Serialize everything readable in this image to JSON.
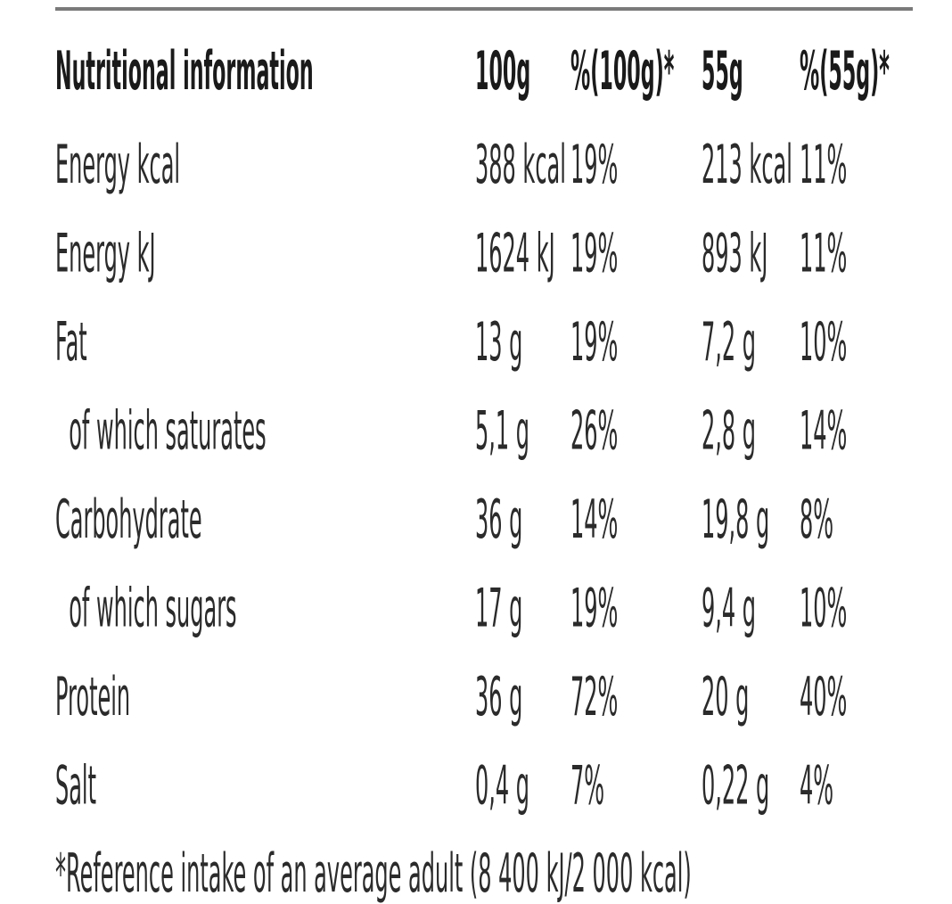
{
  "table": {
    "header": [
      "Nutritional information",
      "100g",
      "%(100g)*",
      "55g",
      "%(55g)*"
    ],
    "rows": [
      [
        "Energy kcal",
        "388 kcal",
        "19%",
        "213 kcal",
        "11%"
      ],
      [
        "Energy kJ",
        "1624 kJ",
        "19%",
        "893 kJ",
        "11%"
      ],
      [
        "Fat",
        "13 g",
        "19%",
        "7,2 g",
        "10%"
      ],
      [
        "  of which saturates",
        "5,1 g",
        "26%",
        "2,8 g",
        "14%"
      ],
      [
        "Carbohydrate",
        "36 g",
        "14%",
        "19,8 g",
        "8%"
      ],
      [
        "  of which sugars",
        "17 g",
        "19%",
        "9,4 g",
        "10%"
      ],
      [
        "Protein",
        "36 g",
        "72%",
        "20 g",
        "40%"
      ],
      [
        "Salt",
        "0,4 g",
        "7%",
        "0,22 g",
        "4%"
      ]
    ],
    "footnote": "*Reference intake of an average adult (8 400 kJ/2 000 kcal)"
  }
}
